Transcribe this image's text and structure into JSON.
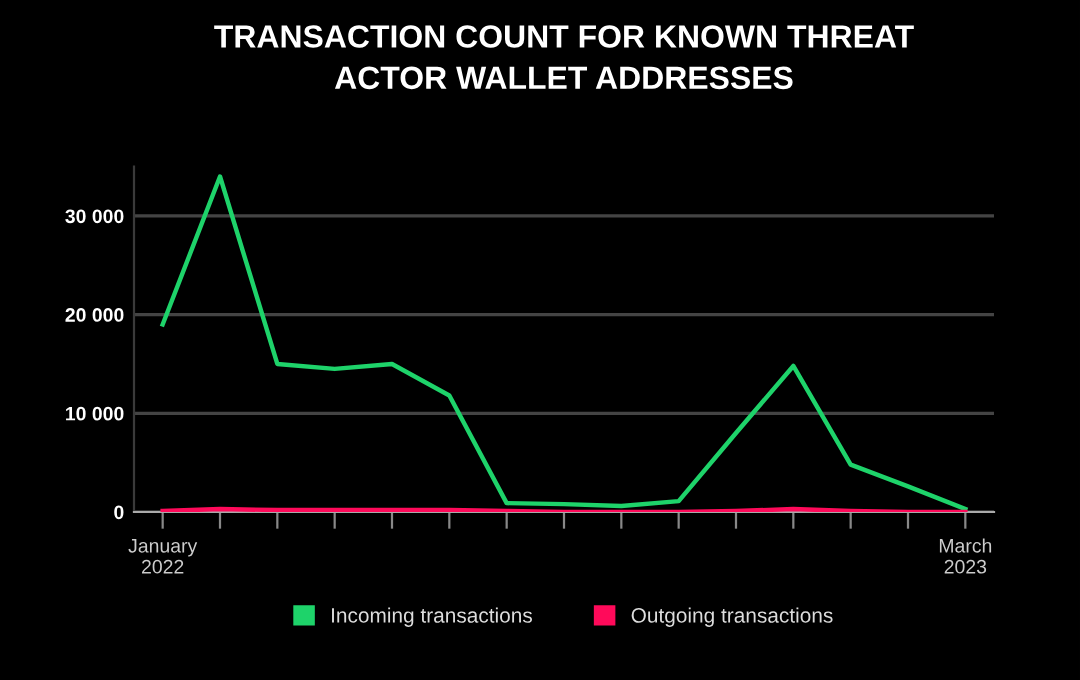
{
  "chart_data": {
    "type": "line",
    "title": "TRANSACTION COUNT FOR KNOWN THREAT\nACTOR WALLET ADDRESSES",
    "categories": [
      "January\n2022",
      null,
      null,
      null,
      null,
      null,
      null,
      null,
      null,
      null,
      null,
      null,
      null,
      null,
      "March\n2023"
    ],
    "series": [
      {
        "name": "Incoming transactions",
        "color": "#1ed36a",
        "values": [
          19000,
          34000,
          15000,
          14500,
          15000,
          11800,
          900,
          800,
          600,
          1100,
          8000,
          14800,
          4800,
          2600,
          300
        ]
      },
      {
        "name": "Outgoing transactions",
        "color": "#ff0a5a",
        "values": [
          100,
          300,
          200,
          200,
          200,
          200,
          100,
          0,
          0,
          0,
          100,
          300,
          100,
          0,
          0
        ]
      }
    ],
    "ylim": [
      0,
      35000
    ],
    "yticks": [
      {
        "value": 0,
        "label": "0"
      },
      {
        "value": 10000,
        "label": "10 000"
      },
      {
        "value": 20000,
        "label": "20 000"
      },
      {
        "value": 30000,
        "label": "30 000"
      }
    ],
    "grid": "y",
    "legend": "bottom",
    "marker": "none",
    "line_style": "solid"
  }
}
